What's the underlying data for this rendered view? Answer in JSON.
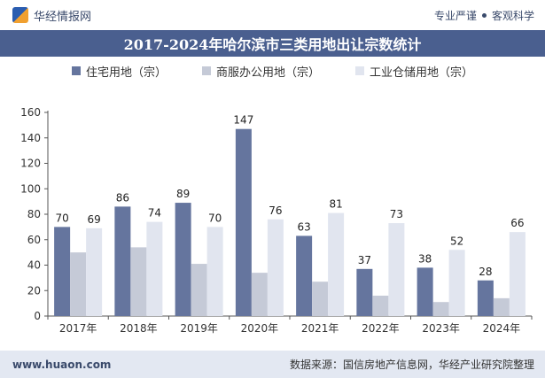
{
  "header": {
    "brand": "华经情报网",
    "slogan_left": "专业严谨",
    "slogan_right": "客观科学"
  },
  "footer": {
    "website": "www.huaon.com",
    "source": "数据来源：国信房地产信息网，华经产业研究院整理"
  },
  "colors": {
    "residential": "#65759e",
    "commercial": "#c5cad7",
    "industrial": "#e1e5ef",
    "title_bg": "#4a5f8f"
  },
  "chart_data": {
    "type": "bar",
    "title": "2017-2024年哈尔滨市三类用地出让宗数统计",
    "categories": [
      "2017年",
      "2018年",
      "2019年",
      "2020年",
      "2021年",
      "2022年",
      "2023年",
      "2024年"
    ],
    "series": [
      {
        "name": "住宅用地（宗）",
        "values": [
          70,
          86,
          89,
          147,
          63,
          37,
          38,
          28
        ]
      },
      {
        "name": "商服办公用地（宗）",
        "values": [
          50,
          54,
          41,
          34,
          27,
          16,
          11,
          14
        ]
      },
      {
        "name": "工业仓储用地（宗）",
        "values": [
          69,
          74,
          70,
          76,
          81,
          73,
          52,
          66
        ]
      }
    ],
    "data_labels_series": [
      0,
      2
    ],
    "ylim": [
      0,
      160
    ],
    "yticks": [
      0,
      20,
      40,
      60,
      80,
      100,
      120,
      140,
      160
    ],
    "xlabel": "",
    "ylabel": "",
    "grid": false,
    "legend_position": "top"
  }
}
